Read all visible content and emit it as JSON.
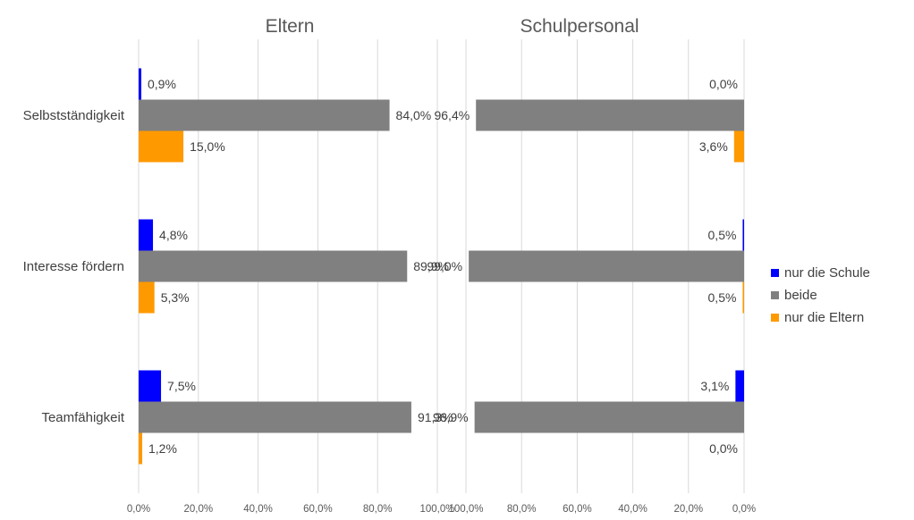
{
  "chart_data": [
    {
      "type": "bar",
      "orientation": "horizontal",
      "title": "Eltern",
      "categories": [
        "Selbstständigkeit",
        "Interesse fördern",
        "Teamfähigkeit"
      ],
      "series": [
        {
          "name": "nur die Schule",
          "color": "#0000FF",
          "values": [
            0.9,
            4.8,
            7.5
          ],
          "labels": [
            "0,9%",
            "4,8%",
            "7,5%"
          ]
        },
        {
          "name": "beide",
          "color": "#808080",
          "values": [
            84.0,
            89.9,
            91.3
          ],
          "labels": [
            "84,0%",
            "89,9%",
            "91,3%"
          ]
        },
        {
          "name": "nur die Eltern",
          "color": "#FF9900",
          "values": [
            15.0,
            5.3,
            1.2
          ],
          "labels": [
            "15,0%",
            "5,3%",
            "1,2%"
          ]
        }
      ],
      "xlim": [
        0,
        100
      ],
      "xticks": [
        "0,0%",
        "20,0%",
        "40,0%",
        "60,0%",
        "80,0%",
        "100,0%"
      ],
      "grid": true
    },
    {
      "type": "bar",
      "orientation": "horizontal",
      "direction": "reversed",
      "title": "Schulpersonal",
      "categories": [
        "Selbstständigkeit",
        "Interesse fördern",
        "Teamfähigkeit"
      ],
      "series": [
        {
          "name": "nur die Schule",
          "color": "#0000FF",
          "values": [
            0.0,
            0.5,
            3.1
          ],
          "labels": [
            "0,0%",
            "0,5%",
            "3,1%"
          ]
        },
        {
          "name": "beide",
          "color": "#808080",
          "values": [
            96.4,
            99.0,
            96.9
          ],
          "labels": [
            "96,4%",
            "99,0%",
            "96,9%"
          ]
        },
        {
          "name": "nur die Eltern",
          "color": "#FF9900",
          "values": [
            3.6,
            0.5,
            0.0
          ],
          "labels": [
            "3,6%",
            "0,5%",
            "0,0%"
          ]
        }
      ],
      "xlim": [
        0,
        100
      ],
      "xticks": [
        "100,0%",
        "80,0%",
        "60,0%",
        "40,0%",
        "20,0%",
        "0,0%"
      ],
      "grid": true
    }
  ],
  "legend": {
    "placement": "right",
    "items": [
      {
        "label": "nur die Schule",
        "color": "#0000FF"
      },
      {
        "label": "beide",
        "color": "#808080"
      },
      {
        "label": "nur die Eltern",
        "color": "#FF9900"
      }
    ]
  }
}
